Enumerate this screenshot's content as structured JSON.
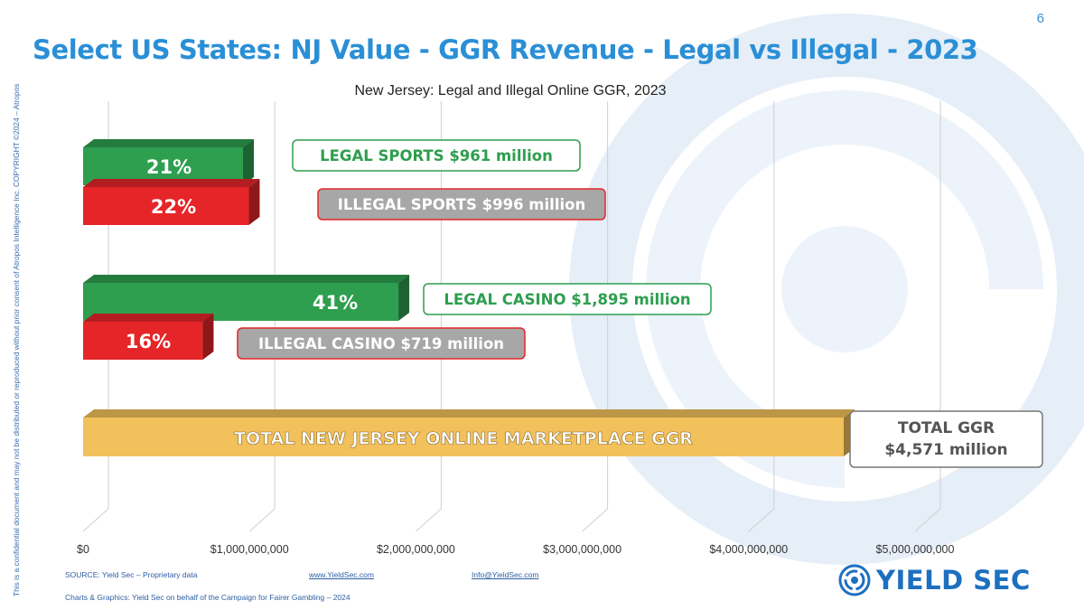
{
  "slide": {
    "page_number": "6",
    "title": "Select US States: NJ Value - GGR Revenue - Legal vs Illegal - 2023",
    "side_note": "This is a confidential document and may not be distributed or reproduced without prior consent of Atropos Intelligence Inc. COPYRIGHT ©2024 – Atropos",
    "footer": {
      "source": "SOURCE: Yield Sec – Proprietary data",
      "website": "www.YieldSec.com",
      "email": "Info@YieldSec.com",
      "credit": "Charts & Graphics: Yield Sec on behalf of the Campaign for Fairer Gambling – 2024"
    },
    "logo_text": "YIELD SEC",
    "colors": {
      "title": "#2a8fd6",
      "legal": "#2e9e4f",
      "illegal": "#e52528",
      "total": "#f2c15c",
      "grid": "#cfcfcf"
    }
  },
  "chart_data": {
    "type": "bar",
    "orientation": "horizontal",
    "title": "New Jersey:  Legal and Illegal Online GGR, 2023",
    "xlim": [
      0,
      5000000000
    ],
    "x_ticks": [
      0,
      1000000000,
      2000000000,
      3000000000,
      4000000000,
      5000000000
    ],
    "x_tick_labels": [
      "$0",
      "$1,000,000,000",
      "$2,000,000,000",
      "$3,000,000,000",
      "$4,000,000,000",
      "$5,000,000,000"
    ],
    "grid": true,
    "bars": [
      {
        "category": "Legal Sports",
        "value": 961000000,
        "bar_label": "21%",
        "callout": "LEGAL SPORTS $961 million",
        "kind": "legal"
      },
      {
        "category": "Illegal Sports",
        "value": 996000000,
        "bar_label": "22%",
        "callout": "ILLEGAL SPORTS $996 million",
        "kind": "illegal"
      },
      {
        "category": "Legal Casino",
        "value": 1895000000,
        "bar_label": "41%",
        "callout": "LEGAL CASINO $1,895 million",
        "kind": "legal"
      },
      {
        "category": "Illegal Casino",
        "value": 719000000,
        "bar_label": "16%",
        "callout": "ILLEGAL CASINO $719 million",
        "kind": "illegal"
      },
      {
        "category": "Total",
        "value": 4571000000,
        "bar_label": "TOTAL NEW JERSEY ONLINE MARKETPLACE GGR",
        "callout_lines": [
          "TOTAL GGR",
          "$4,571 million"
        ],
        "kind": "total"
      }
    ]
  }
}
